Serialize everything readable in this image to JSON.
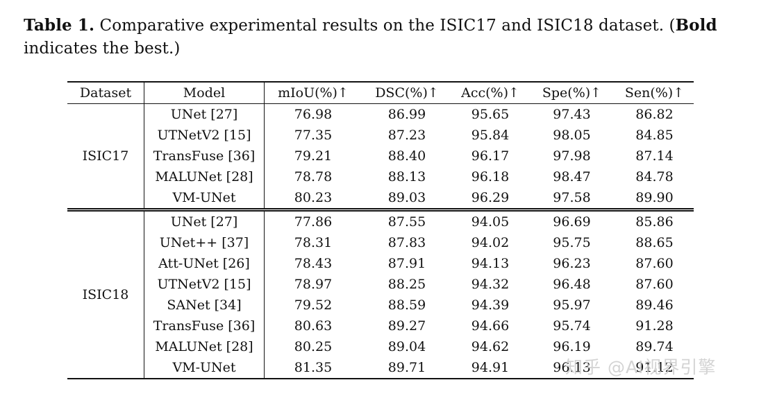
{
  "caption": {
    "label": "Table 1.",
    "text_before_bold": " Comparative experimental results on the ISIC17 and ISIC18 dataset. (",
    "bold_word": "Bold",
    "text_after_bold": " indicates the best.)"
  },
  "table": {
    "headers": [
      "Dataset",
      "Model",
      "mIoU(%)↑",
      "DSC(%)↑",
      "Acc(%)↑",
      "Spe(%)↑",
      "Sen(%)↑"
    ],
    "sections": [
      {
        "dataset": "ISIC17",
        "rows": [
          {
            "model": "UNet [27]",
            "miou": "76.98",
            "dsc": "86.99",
            "acc": "95.65",
            "spe": "97.43",
            "sen": "86.82"
          },
          {
            "model": "UTNetV2 [15]",
            "miou": "77.35",
            "dsc": "87.23",
            "acc": "95.84",
            "spe": "98.05",
            "sen": "84.85"
          },
          {
            "model": "TransFuse [36]",
            "miou": "79.21",
            "dsc": "88.40",
            "acc": "96.17",
            "spe": "97.98",
            "sen": "87.14"
          },
          {
            "model": "MALUNet [28]",
            "miou": "78.78",
            "dsc": "88.13",
            "acc": "96.18",
            "spe": "98.47",
            "sen": "84.78"
          },
          {
            "model": "VM-UNet",
            "miou": "80.23",
            "dsc": "89.03",
            "acc": "96.29",
            "spe": "97.58",
            "sen": "89.90"
          }
        ]
      },
      {
        "dataset": "ISIC18",
        "rows": [
          {
            "model": "UNet [27]",
            "miou": "77.86",
            "dsc": "87.55",
            "acc": "94.05",
            "spe": "96.69",
            "sen": "85.86"
          },
          {
            "model": "UNet++ [37]",
            "miou": "78.31",
            "dsc": "87.83",
            "acc": "94.02",
            "spe": "95.75",
            "sen": "88.65"
          },
          {
            "model": "Att-UNet [26]",
            "miou": "78.43",
            "dsc": "87.91",
            "acc": "94.13",
            "spe": "96.23",
            "sen": "87.60"
          },
          {
            "model": "UTNetV2 [15]",
            "miou": "78.97",
            "dsc": "88.25",
            "acc": "94.32",
            "spe": "96.48",
            "sen": "87.60"
          },
          {
            "model": "SANet [34]",
            "miou": "79.52",
            "dsc": "88.59",
            "acc": "94.39",
            "spe": "95.97",
            "sen": "89.46"
          },
          {
            "model": "TransFuse [36]",
            "miou": "80.63",
            "dsc": "89.27",
            "acc": "94.66",
            "spe": "95.74",
            "sen": "91.28"
          },
          {
            "model": "MALUNet [28]",
            "miou": "80.25",
            "dsc": "89.04",
            "acc": "94.62",
            "spe": "96.19",
            "sen": "89.74"
          },
          {
            "model": "VM-UNet",
            "miou": "81.35",
            "dsc": "89.71",
            "acc": "94.91",
            "spe": "96.13",
            "sen": "91.12"
          }
        ]
      }
    ]
  },
  "watermark": "知乎 @AI视界引擎"
}
